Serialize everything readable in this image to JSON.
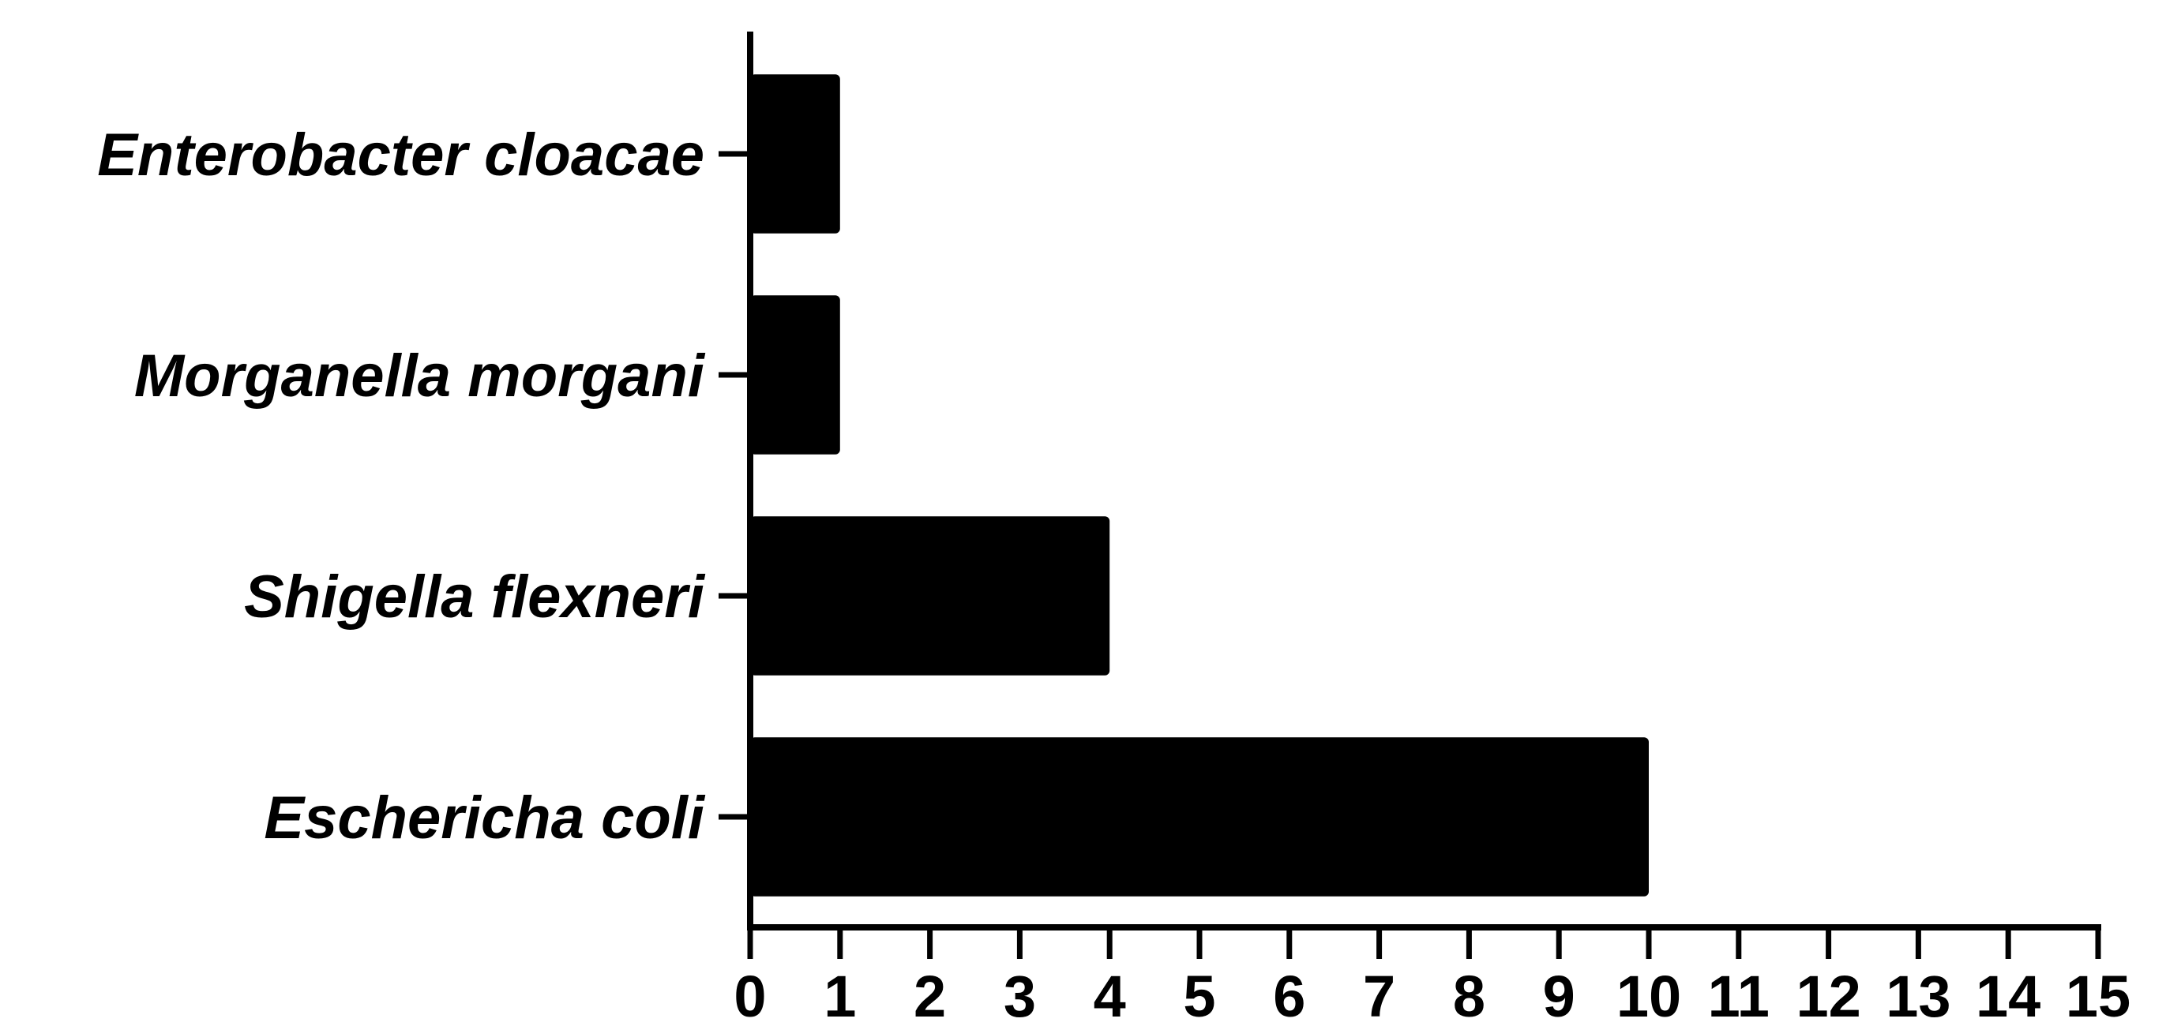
{
  "chart_data": {
    "type": "bar",
    "orientation": "horizontal",
    "categories": [
      "Enterobacter cloacae",
      "Morganella morgani",
      "Shigella flexneri",
      "Eschericha coli"
    ],
    "values": [
      1,
      1,
      4,
      10
    ],
    "title": "",
    "xlabel": "",
    "ylabel": "",
    "xlim": [
      0,
      15
    ],
    "x_ticks": [
      "0",
      "1",
      "2",
      "3",
      "4",
      "5",
      "6",
      "7",
      "8",
      "9",
      "10",
      "11",
      "12",
      "13",
      "14",
      "15"
    ],
    "grid": false,
    "legend": "none",
    "bar_color": "#000000",
    "axis_color": "#000000"
  }
}
